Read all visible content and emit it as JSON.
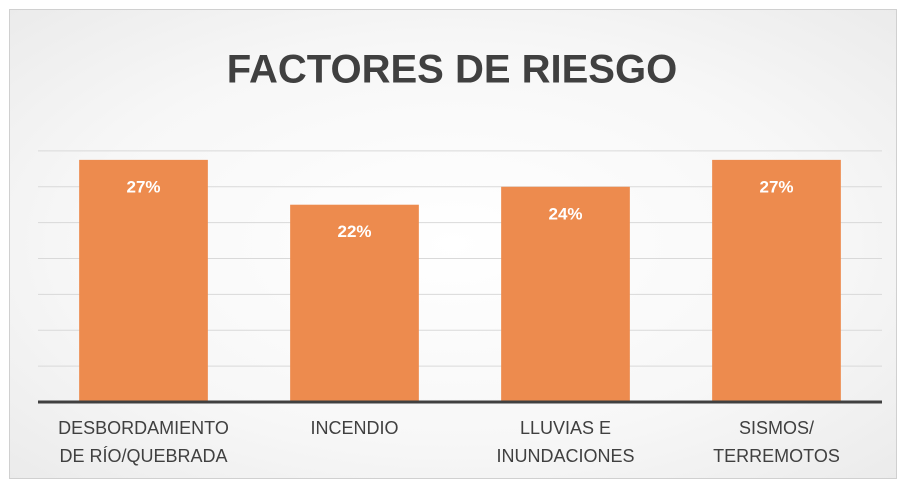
{
  "chart_data": {
    "type": "bar",
    "title": "FACTORES DE RIESGO",
    "categories": [
      "DESBORDAMIENTO DE RÍO/QUEBRADA",
      "INCENDIO",
      "LLUVIAS E INUNDACIONES",
      "SISMOS/ TERREMOTOS"
    ],
    "values": [
      27,
      22,
      24,
      27
    ],
    "value_labels": [
      "27%",
      "22%",
      "24%",
      "27%"
    ],
    "color": "#ed8b4e",
    "ylim": [
      0,
      31
    ],
    "yticks": [
      0,
      4,
      8,
      12,
      16,
      20,
      24,
      28
    ],
    "grid": true
  }
}
